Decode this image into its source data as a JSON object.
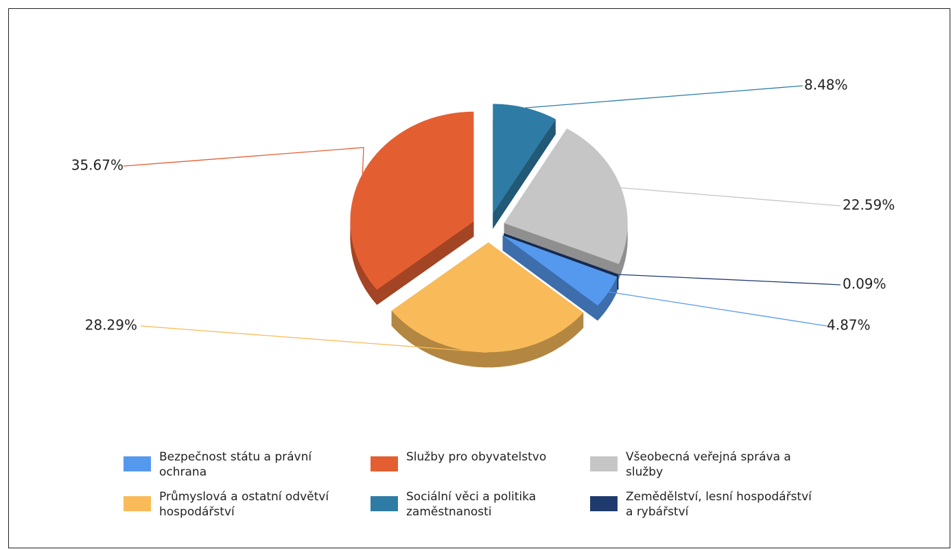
{
  "chart_data": {
    "type": "pie",
    "categories": [
      "Sociální věci a politika zaměstnanosti",
      "Všeobecná veřejná správa a služby",
      "Zemědělství, lesní hospodářství a rybářství",
      "Bezpečnost státu a právní ochrana",
      "Průmyslová a ostatní odvětví hospodářství",
      "Služby pro obyvatelstvo"
    ],
    "values": [
      8.48,
      22.59,
      0.09,
      4.87,
      28.29,
      35.67
    ],
    "value_labels": [
      "8.48%",
      "22.59%",
      "0.09%",
      "4.87%",
      "28.29%",
      "35.67%"
    ],
    "colors": [
      "#2e7ca5",
      "#c6c6c6",
      "#1f3b6e",
      "#5599ee",
      "#f9bb5a",
      "#e35f32"
    ],
    "legend": "bottom"
  }
}
